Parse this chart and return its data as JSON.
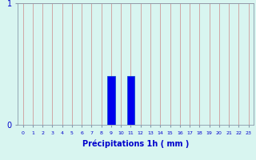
{
  "xlabel": "Précipitations 1h ( mm )",
  "hours": [
    0,
    1,
    2,
    3,
    4,
    5,
    6,
    7,
    8,
    9,
    10,
    11,
    12,
    13,
    14,
    15,
    16,
    17,
    18,
    19,
    20,
    21,
    22,
    23
  ],
  "values": [
    0,
    0,
    0,
    0,
    0,
    0,
    0,
    0,
    0,
    0.4,
    0,
    0.4,
    0,
    0,
    0,
    0,
    0,
    0,
    0,
    0,
    0,
    0,
    0,
    0
  ],
  "bar_color": "#0000ee",
  "bar_edge_color": "#0044cc",
  "background_color": "#d8f5f0",
  "grid_color": "#cc8888",
  "axis_color": "#8899aa",
  "text_color": "#0000cc",
  "ylim": [
    0,
    1
  ],
  "yticks": [
    0,
    1
  ],
  "bar_width": 0.75,
  "figsize": [
    3.2,
    2.0
  ],
  "dpi": 100
}
